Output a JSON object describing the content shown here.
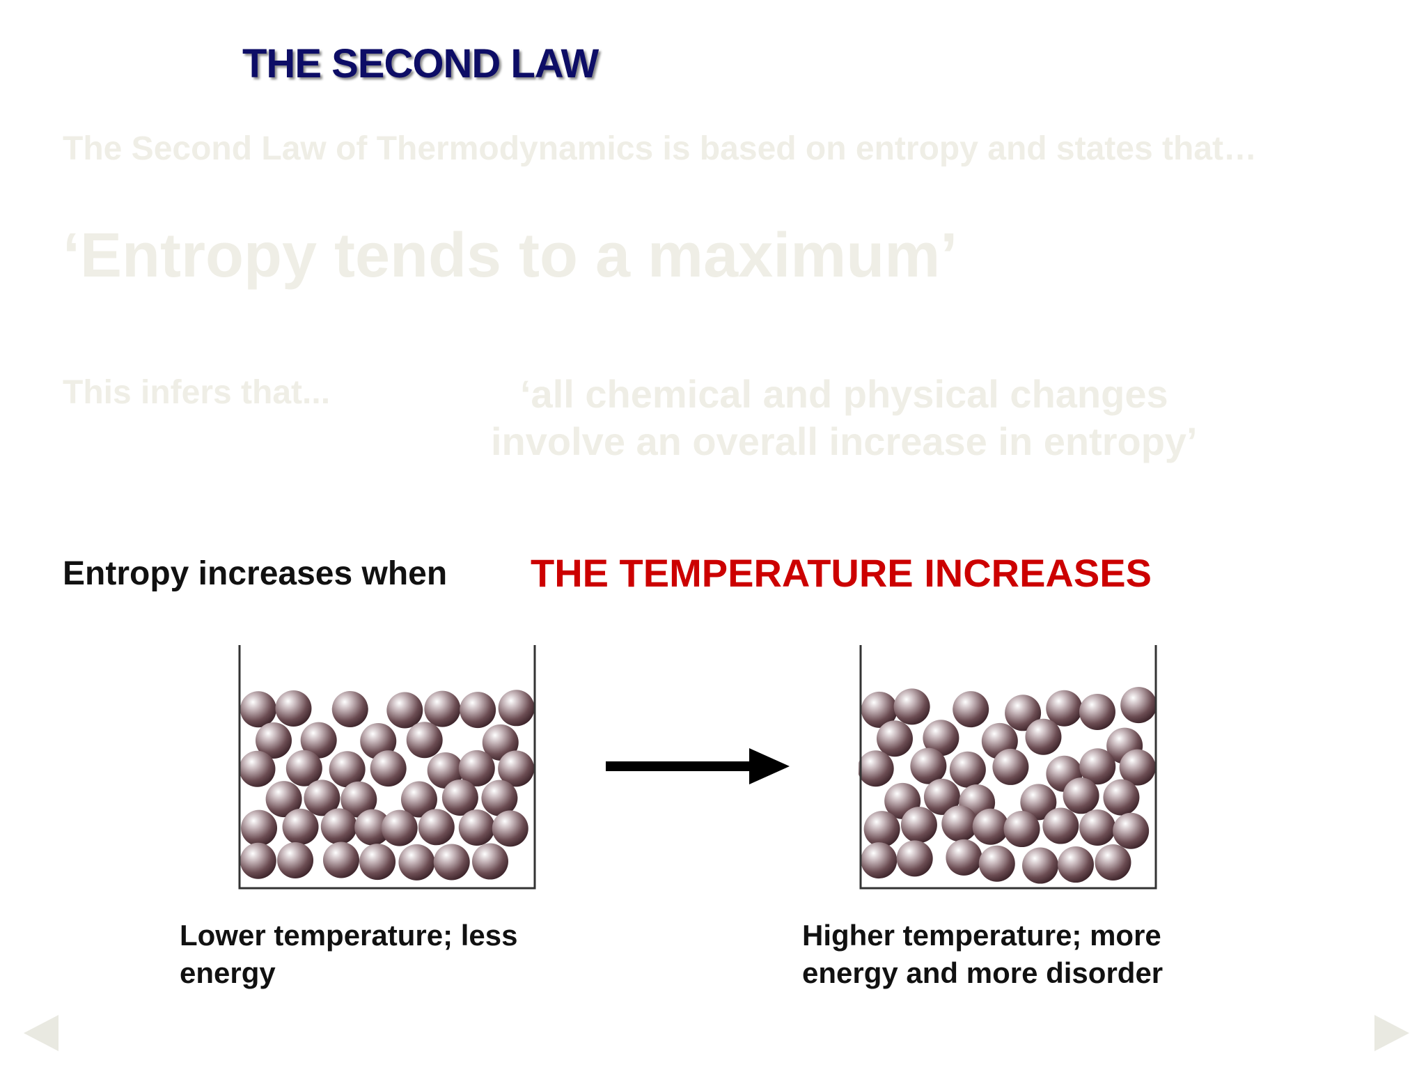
{
  "slide": {
    "title": "THE SECOND LAW",
    "intro": "The Second Law of Thermodynamics is based on entropy and states that…",
    "principle": "‘Entropy tends to a maximum’",
    "infers_label": "This infers that...",
    "changes_line1": "‘all chemical and physical changes",
    "changes_line2": "involve an overall increase in entropy’",
    "increases_when": "Entropy increases when",
    "condition": "THE TEMPERATURE INCREASES",
    "caption_low_line1": "Lower temperature; less",
    "caption_low_line2": "energy",
    "caption_high_line1": "Higher temperature; more",
    "caption_high_line2": "energy and more disorder"
  },
  "colors": {
    "title": "#0d0d66",
    "condition": "#cc0000",
    "faded_text": "#efeee6",
    "particle": "#6b4c52"
  },
  "icons": {
    "previous": "triangle-left-icon",
    "next": "triangle-right-icon",
    "transition": "arrow-right-icon"
  }
}
